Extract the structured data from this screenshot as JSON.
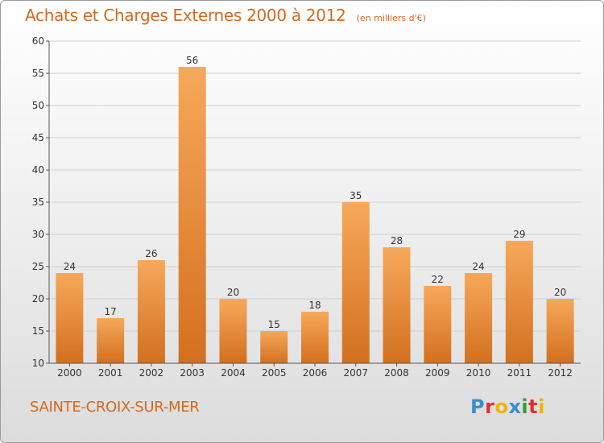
{
  "header": {
    "title": "Achats et Charges Externes 2000 à 2012",
    "unit": "(en milliers d'€)"
  },
  "footer": {
    "commune": "SAINTE-CROIX-SUR-MER",
    "brand": "Proxiti"
  },
  "colors": {
    "title": "#d2691e",
    "bar_light": "#f7a85a",
    "bar_dark": "#d2701f",
    "grid": "#cfcfcf",
    "axis": "#555555",
    "brand_letters": [
      "#3a8fd0",
      "#e03030",
      "#f0b400",
      "#3a8fd0",
      "#30a030",
      "#e03030",
      "#f0b400"
    ]
  },
  "chart_data": {
    "type": "bar",
    "categories": [
      "2000",
      "2001",
      "2002",
      "2003",
      "2004",
      "2005",
      "2006",
      "2007",
      "2008",
      "2009",
      "2010",
      "2011",
      "2012"
    ],
    "values": [
      24,
      17,
      26,
      56,
      20,
      15,
      18,
      35,
      28,
      22,
      24,
      29,
      20
    ],
    "ylim": [
      10,
      60
    ],
    "yticks": [
      10,
      15,
      20,
      25,
      30,
      35,
      40,
      45,
      50,
      55,
      60
    ],
    "grid": true,
    "legend": "none"
  }
}
